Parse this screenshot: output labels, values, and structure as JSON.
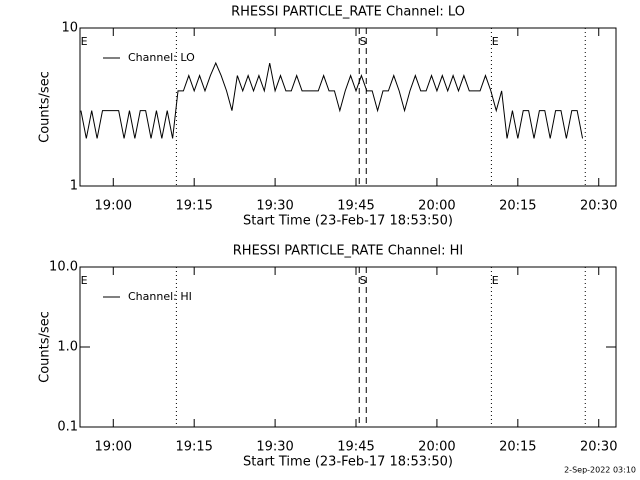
{
  "chart_data": [
    {
      "type": "line",
      "title": "RHESSI PARTICLE_RATE Channel: LO",
      "xlabel": "Start Time (23-Feb-17 18:53:50)",
      "ylabel": "Counts/sec",
      "log_y": true,
      "ylim": [
        1,
        10
      ],
      "yticks": [
        1,
        10
      ],
      "xlim": [
        1133.83,
        1233.2
      ],
      "xticks": [
        {
          "value": 1140,
          "label": "19:00"
        },
        {
          "value": 1155,
          "label": "19:15"
        },
        {
          "value": 1170,
          "label": "19:30"
        },
        {
          "value": 1185,
          "label": "19:45"
        },
        {
          "value": 1200,
          "label": "20:00"
        },
        {
          "value": 1215,
          "label": "20:15"
        },
        {
          "value": 1230,
          "label": "20:30"
        }
      ],
      "x": [
        1134,
        1135,
        1136,
        1137,
        1138,
        1139,
        1140,
        1141,
        1142,
        1143,
        1144,
        1145,
        1146,
        1147,
        1148,
        1149,
        1150,
        1151,
        1152,
        1153,
        1154,
        1155,
        1156,
        1157,
        1158,
        1159,
        1160,
        1161,
        1162,
        1163,
        1164,
        1165,
        1166,
        1167,
        1168,
        1169,
        1170,
        1171,
        1172,
        1173,
        1174,
        1175,
        1176,
        1177,
        1178,
        1179,
        1180,
        1181,
        1182,
        1183,
        1184,
        1185,
        1186,
        1187,
        1188,
        1189,
        1190,
        1191,
        1192,
        1193,
        1194,
        1195,
        1196,
        1197,
        1198,
        1199,
        1200,
        1201,
        1202,
        1203,
        1204,
        1205,
        1206,
        1207,
        1208,
        1209,
        1210,
        1211,
        1212,
        1213,
        1214,
        1215,
        1216,
        1217,
        1218,
        1219,
        1220,
        1221,
        1222,
        1223,
        1224,
        1225,
        1226,
        1227
      ],
      "series": [
        {
          "name": "Channel: LO",
          "color": "#000000",
          "values": [
            3,
            2,
            3,
            2,
            3,
            3,
            3,
            3,
            2,
            3,
            2,
            3,
            3,
            2,
            3,
            2,
            3,
            2,
            4,
            4,
            5,
            4,
            5,
            4,
            5,
            6,
            5,
            4,
            3,
            5,
            4,
            5,
            4,
            5,
            4,
            6,
            4,
            5,
            4,
            4,
            5,
            4,
            4,
            4,
            4,
            5,
            4,
            4,
            3,
            4,
            5,
            4,
            5,
            4,
            4,
            3,
            4,
            4,
            5,
            4,
            3,
            4,
            5,
            4,
            4,
            5,
            4,
            5,
            4,
            5,
            4,
            5,
            4,
            4,
            4,
            5,
            4,
            3,
            4,
            2,
            3,
            2,
            3,
            3,
            2,
            3,
            3,
            2,
            3,
            3,
            2,
            3,
            3,
            2
          ]
        }
      ],
      "vlines": [
        {
          "x": 1151.7,
          "style": "dotted"
        },
        {
          "x": 1185.6,
          "style": "dashed"
        },
        {
          "x": 1186.9,
          "style": "dashed"
        },
        {
          "x": 1210.1,
          "style": "dotted"
        },
        {
          "x": 1227.5,
          "style": "dotted"
        }
      ],
      "markers": [
        {
          "x": 1134.6,
          "label": "E"
        },
        {
          "x": 1186.3,
          "label": "S"
        },
        {
          "x": 1210.8,
          "label": "E"
        }
      ]
    },
    {
      "type": "line",
      "title": "RHESSI PARTICLE_RATE Channel: HI",
      "xlabel": "Start Time (23-Feb-17 18:53:50)",
      "ylabel": "Counts/sec",
      "log_y": true,
      "ylim": [
        0.1,
        10
      ],
      "yticks": [
        0.1,
        {
          "value": 1,
          "label": "1.0"
        },
        {
          "value": 10,
          "label": "10.0"
        }
      ],
      "xlim": [
        1133.83,
        1233.2
      ],
      "xticks": [
        {
          "value": 1140,
          "label": "19:00"
        },
        {
          "value": 1155,
          "label": "19:15"
        },
        {
          "value": 1170,
          "label": "19:30"
        },
        {
          "value": 1185,
          "label": "19:45"
        },
        {
          "value": 1200,
          "label": "20:00"
        },
        {
          "value": 1215,
          "label": "20:15"
        },
        {
          "value": 1230,
          "label": "20:30"
        }
      ],
      "x": [],
      "series": [
        {
          "name": "Channel: HI",
          "color": "#000000",
          "values": []
        }
      ],
      "vlines": [
        {
          "x": 1151.7,
          "style": "dotted"
        },
        {
          "x": 1185.6,
          "style": "dashed"
        },
        {
          "x": 1186.9,
          "style": "dashed"
        },
        {
          "x": 1210.1,
          "style": "dotted"
        },
        {
          "x": 1227.5,
          "style": "dotted"
        }
      ],
      "markers": [
        {
          "x": 1134.6,
          "label": "E"
        },
        {
          "x": 1186.3,
          "label": "S"
        },
        {
          "x": 1210.8,
          "label": "E"
        }
      ]
    }
  ],
  "footer": "2-Sep-2022 03:10"
}
